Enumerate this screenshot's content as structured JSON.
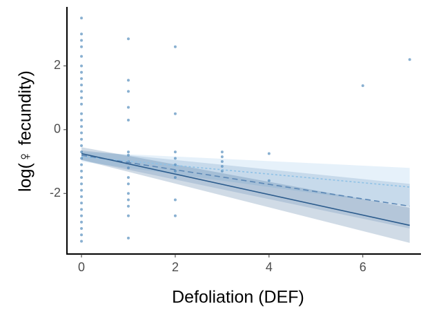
{
  "chart_data": {
    "type": "scatter",
    "x_label": "Defoliation (DEF)",
    "y_label": "log(♀ fecundity)",
    "xlim": [
      -0.31,
      7.24
    ],
    "ylim": [
      -3.9,
      3.85
    ],
    "xticks": [
      0,
      2,
      4,
      6
    ],
    "yticks": [
      -2,
      0,
      2
    ],
    "grid": false,
    "points": {
      "color": "#4a86b8",
      "x": [
        0,
        0,
        0,
        0,
        0,
        0,
        0,
        0,
        0,
        0,
        0,
        0,
        0,
        0,
        0,
        0,
        0,
        0,
        0,
        0,
        0,
        0,
        0,
        0,
        0,
        0,
        0,
        0,
        0,
        0,
        0,
        0,
        0,
        1,
        1,
        1,
        1,
        1,
        1,
        1,
        1,
        1,
        1,
        1,
        1,
        1,
        1,
        1,
        1,
        2,
        2,
        2,
        2,
        2,
        2,
        2,
        2,
        2,
        3,
        3,
        3,
        3,
        3,
        4,
        4,
        6,
        7
      ],
      "values": [
        3.5,
        3.0,
        2.8,
        2.6,
        2.3,
        2.0,
        1.8,
        1.6,
        1.4,
        1.2,
        1.0,
        0.8,
        0.5,
        0.3,
        0.1,
        -0.1,
        -0.3,
        -0.5,
        -0.7,
        -0.9,
        -1.1,
        -1.3,
        -1.5,
        -1.7,
        -1.9,
        -2.1,
        -2.3,
        -2.5,
        -2.7,
        -2.9,
        -3.1,
        -3.3,
        -3.5,
        2.85,
        1.55,
        1.2,
        0.7,
        0.3,
        -0.7,
        -0.8,
        -1.0,
        -1.2,
        -1.5,
        -1.7,
        -2.0,
        -2.2,
        -2.4,
        -2.7,
        -3.4,
        2.6,
        0.5,
        -0.7,
        -0.9,
        -1.1,
        -1.3,
        -1.5,
        -2.2,
        -2.7,
        -0.7,
        -0.85,
        -1.0,
        -1.15,
        -1.3,
        -0.75,
        -1.6,
        1.38,
        2.2
      ]
    },
    "fits": [
      {
        "color": "#8ec1e6",
        "line_style": "dotted",
        "x": [
          0,
          7
        ],
        "values": [
          -0.85,
          -1.8
        ],
        "lower": [
          -1.0,
          -2.4
        ],
        "upper": [
          -0.7,
          -1.2
        ]
      },
      {
        "color": "#5b87b5",
        "line_style": "dashed",
        "x": [
          0,
          7
        ],
        "values": [
          -0.8,
          -2.4
        ],
        "lower": [
          -0.95,
          -3.1
        ],
        "upper": [
          -0.65,
          -1.7
        ]
      },
      {
        "color": "#2b5b8c",
        "line_style": "solid",
        "x": [
          0,
          7
        ],
        "values": [
          -0.75,
          -3.0
        ],
        "lower": [
          -0.95,
          -3.55
        ],
        "upper": [
          -0.55,
          -2.45
        ]
      }
    ]
  }
}
